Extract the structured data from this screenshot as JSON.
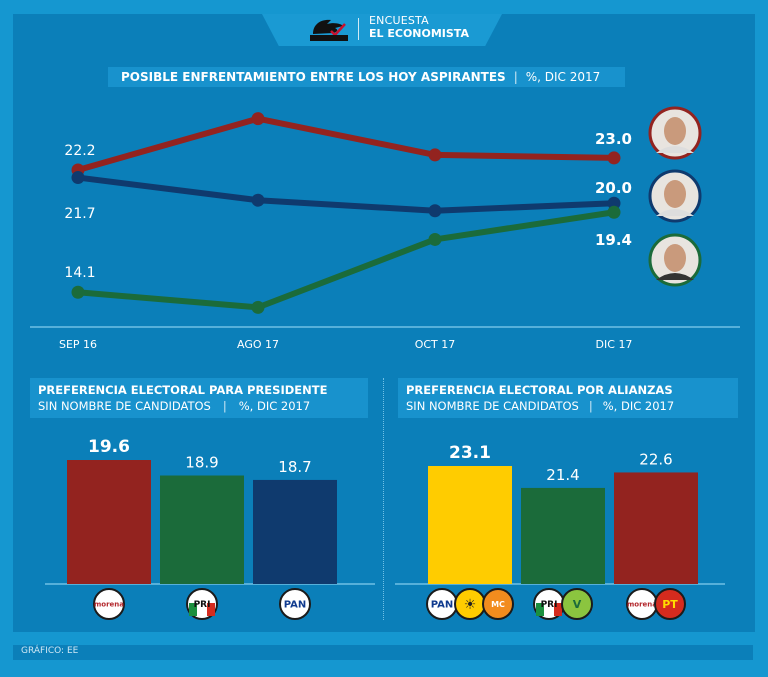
{
  "header": {
    "line1": "ENCUESTA",
    "line2": "EL ECONOMISTA",
    "logo_icon": "survey-logo-icon"
  },
  "colors": {
    "red": "#93231f",
    "blue": "#0f3a6e",
    "green": "#1b6b3a",
    "yellow": "#ffcc00",
    "panel": "#0b7fb9",
    "background": "#1597d0"
  },
  "chart_data": [
    {
      "type": "line",
      "title": "POSIBLE ENFRENTAMIENTO ENTRE LOS HOY ASPIRANTES",
      "subtitle": "%, DIC 2017",
      "categories": [
        "SEP 16",
        "AGO 17",
        "OCT 17",
        "DIC 17"
      ],
      "ylim": [
        11.8,
        27.5
      ],
      "grid": false,
      "series": [
        {
          "color": "#93231f",
          "values": [
            22.2,
            25.6,
            23.2,
            23.0
          ],
          "labels": [
            "22.2",
            "",
            "",
            "23.0"
          ],
          "photo_border": "#93231f"
        },
        {
          "color": "#0f3a6e",
          "values": [
            21.7,
            20.2,
            19.5,
            20.0
          ],
          "labels": [
            "21.7",
            "",
            "",
            "20.0"
          ],
          "photo_border": "#0f3a6e"
        },
        {
          "color": "#1b6b3a",
          "values": [
            14.1,
            13.1,
            17.6,
            19.4
          ],
          "labels": [
            "14.1",
            "",
            "",
            "19.4"
          ],
          "photo_border": "#1b6b3a"
        }
      ]
    },
    {
      "type": "bar",
      "title": "PREFERENCIA ELECTORAL PARA PRESIDENTE",
      "subtitle": "SIN NOMBRE DE CANDIDATOS",
      "note": "%, DIC 2017",
      "ylim": [
        14,
        20
      ],
      "categories": [
        "morena",
        "PRI",
        "PAN"
      ],
      "values": [
        19.6,
        18.9,
        18.7
      ],
      "labels": [
        "19.6",
        "18.9",
        "18.7"
      ],
      "colors": [
        "#93231f",
        "#1b6b3a",
        "#0f3a6e"
      ],
      "logos": [
        [
          "morena"
        ],
        [
          "PRI"
        ],
        [
          "PAN"
        ]
      ]
    },
    {
      "type": "bar",
      "title": "PREFERENCIA ELECTORAL POR ALIANZAS",
      "subtitle": "SIN NOMBRE DE CANDIDATOS",
      "note": "%, DIC 2017",
      "ylim": [
        13.95,
        23.5
      ],
      "categories": [
        "PAN-PRD-MC",
        "PRI-PVEM",
        "morena-PT"
      ],
      "values": [
        23.1,
        21.4,
        22.6
      ],
      "labels": [
        "23.1",
        "21.4",
        "22.6"
      ],
      "colors": [
        "#ffcc00",
        "#1b6b3a",
        "#93231f"
      ],
      "logos": [
        [
          "PAN",
          "PRD",
          "MC"
        ],
        [
          "PRI",
          "PVEM"
        ],
        [
          "morena",
          "PT"
        ]
      ]
    }
  ],
  "footer": {
    "credit": "GRÁFICO: EE"
  }
}
